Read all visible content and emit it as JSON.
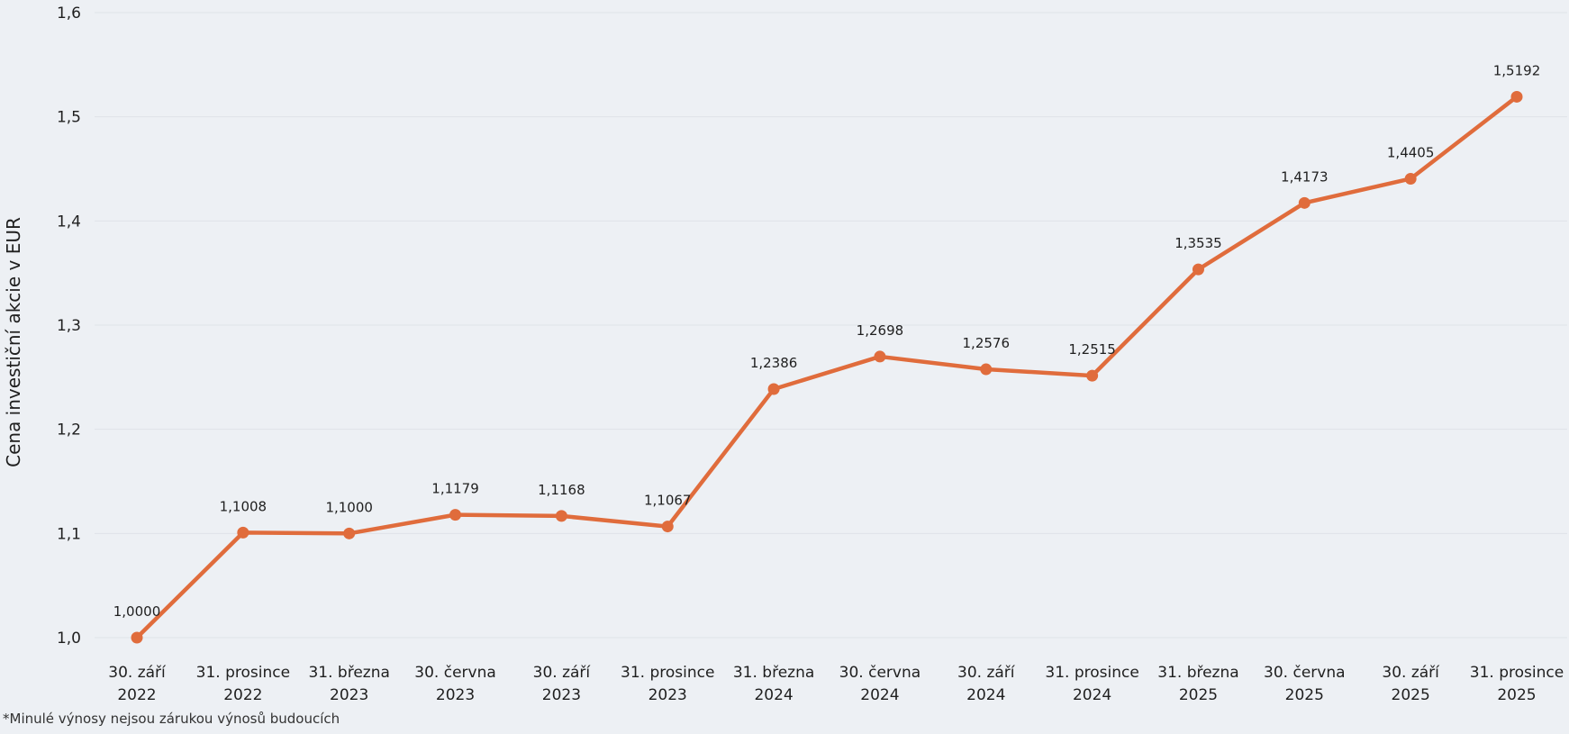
{
  "chart_data": {
    "type": "line",
    "ylabel": "Cena investiční akcie v EUR",
    "xlabel": "",
    "ylim": [
      1.0,
      1.6
    ],
    "yticks": [
      "1,0",
      "1,1",
      "1,2",
      "1,3",
      "1,4",
      "1,5",
      "1,6"
    ],
    "ytick_values": [
      1.0,
      1.1,
      1.2,
      1.3,
      1.4,
      1.5,
      1.6
    ],
    "grid": true,
    "categories": [
      [
        "30. září",
        "2022"
      ],
      [
        "31. prosince",
        "2022"
      ],
      [
        "31. března",
        "2023"
      ],
      [
        "30. června",
        "2023"
      ],
      [
        "30. září",
        "2023"
      ],
      [
        "31. prosince",
        "2023"
      ],
      [
        "31. března",
        "2024"
      ],
      [
        "30. června",
        "2024"
      ],
      [
        "30. září",
        "2024"
      ],
      [
        "31. prosince",
        "2024"
      ],
      [
        "31. března",
        "2025"
      ],
      [
        "30. června",
        "2025"
      ],
      [
        "30. září",
        "2025"
      ],
      [
        "31. prosince",
        "2025"
      ]
    ],
    "values": [
      1.0,
      1.1008,
      1.1,
      1.1179,
      1.1168,
      1.1067,
      1.2386,
      1.2698,
      1.2576,
      1.2515,
      1.3535,
      1.4173,
      1.4405,
      1.5192
    ],
    "data_labels": [
      "1,0000",
      "1,1008",
      "1,1000",
      "1,1179",
      "1,1168",
      "1,1067",
      "1,2386",
      "1,2698",
      "1,2576",
      "1,2515",
      "1,3535",
      "1,4173",
      "1,4405",
      "1,5192"
    ],
    "color": "#e06c3c"
  },
  "footnote": "*Minulé výnosy nejsou zárukou výnosů budoucích"
}
